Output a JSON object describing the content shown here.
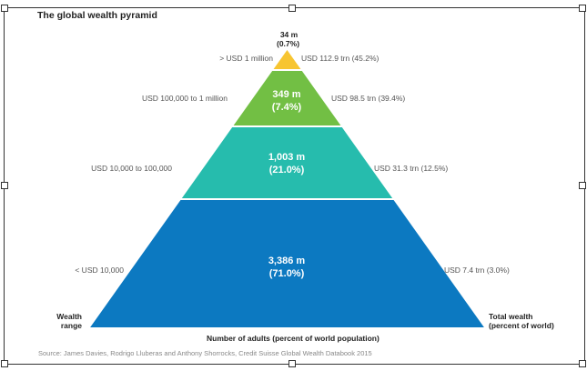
{
  "title": "The global wealth pyramid",
  "source": "Source: James Davies, Rodrigo Lluberas and Anthony Shorrocks, Credit Suisse Global Wealth Databook 2015",
  "left_axis_label": [
    "Wealth",
    "range"
  ],
  "right_axis_label": [
    "Total wealth",
    "(percent of world)"
  ],
  "bottom_label": "Number of adults (percent of world population)",
  "colors": {
    "top": "#f7c531",
    "upper": "#72bf44",
    "middle": "#26bcad",
    "base": "#0c79c1"
  },
  "layers": [
    {
      "range": "> USD 1 million",
      "adults": "34 m",
      "adults_pct": "(0.7%)",
      "wealth": "USD 112.9 trn (45.2%)"
    },
    {
      "range": "USD 100,000 to 1 million",
      "adults": "349 m",
      "adults_pct": "(7.4%)",
      "wealth": "USD 98.5 trn (39.4%)"
    },
    {
      "range": "USD 10,000 to 100,000",
      "adults": "1,003 m",
      "adults_pct": "(21.0%)",
      "wealth": "USD 31.3 trn (12.5%)"
    },
    {
      "range": "< USD 10,000",
      "adults": "3,386 m",
      "adults_pct": "(71.0%)",
      "wealth": "USD 7.4 trn (3.0%)"
    }
  ]
}
